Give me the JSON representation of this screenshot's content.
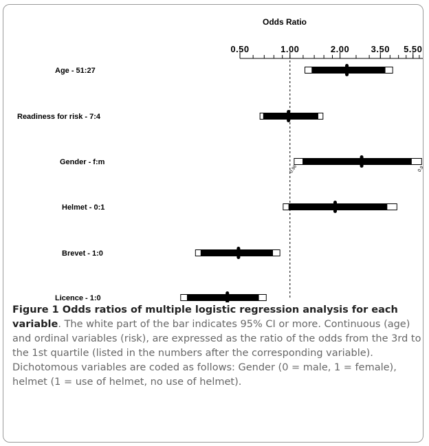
{
  "chart_data": {
    "type": "forest",
    "axis_title": "Odds Ratio",
    "scale": "log",
    "xlim": [
      0.5,
      6.3
    ],
    "tick_labels": [
      "0.50",
      "1.00",
      "2.00",
      "3.50",
      "5.50"
    ],
    "tick_values": [
      0.5,
      1.0,
      2.0,
      3.5,
      5.5
    ],
    "reference_line": 1.0,
    "rows": [
      {
        "label": "Age   -  51:27",
        "or": 2.2,
        "ci_solid": [
          1.35,
          3.75
        ],
        "ci_full": [
          1.23,
          4.15
        ]
      },
      {
        "label": "Readiness for risk  - 7:4",
        "or": 0.98,
        "ci_solid": [
          0.69,
          1.48
        ],
        "ci_full": [
          0.66,
          1.58
        ]
      },
      {
        "label": "Gender  -  f:m",
        "or": 2.7,
        "ci_solid": [
          1.19,
          5.4
        ],
        "ci_full": [
          1.06,
          6.2
        ]
      },
      {
        "label": "Helmet  -  0:1",
        "or": 1.87,
        "ci_solid": [
          0.98,
          3.85
        ],
        "ci_full": [
          0.91,
          4.4
        ]
      },
      {
        "label": "Brevet  -  1:0",
        "or": 0.49,
        "ci_solid": [
          0.29,
          0.79
        ],
        "ci_full": [
          0.27,
          0.87
        ]
      },
      {
        "label": "Licence  - 1:0",
        "or": 0.42,
        "ci_solid": [
          0.24,
          0.65
        ],
        "ci_full": [
          0.22,
          0.72
        ]
      }
    ],
    "annotations": [
      {
        "text": "0.96",
        "row": 2,
        "at": 1.06
      },
      {
        "text": "0.9",
        "row": 2,
        "at": 6.2
      }
    ]
  },
  "caption": {
    "title": "Figure 1 Odds ratios of multiple logistic regression analysis for each variable",
    "text": ". The white part of the bar indicates 95% CI or more. Continuous (age) and ordinal variables (risk), are expressed as the ratio of the odds from the 3rd to the 1st quartile (listed in the numbers after the corresponding variable). Dichotomous variables are coded as follows: Gender (0 = male, 1 = female), helmet (1 = use of helmet, no use of helmet)."
  }
}
